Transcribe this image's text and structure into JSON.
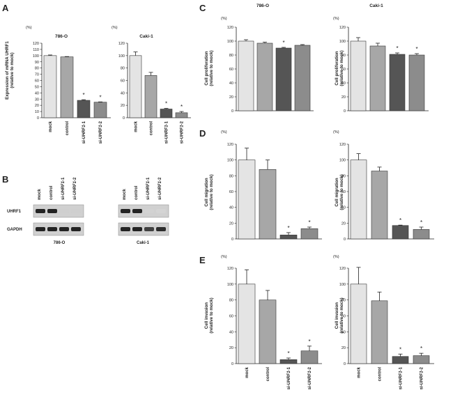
{
  "colors": {
    "mock": "#e4e4e4",
    "control": "#a7a7a7",
    "si1": "#555555",
    "si2": "#8c8c8c",
    "axis": "#222222"
  },
  "panel_letters": {
    "A": "A",
    "B": "B",
    "C": "C",
    "D": "D",
    "E": "E"
  },
  "units": "(%)",
  "star": "*",
  "y_labels": {
    "mrna": [
      "Expression of mRNA UHRF1",
      "(relative to mock)"
    ],
    "proliferation": [
      "Cell proliferation",
      "(relative to mock)"
    ],
    "migration": [
      "Cell migration",
      "(relative to mock)"
    ],
    "invasion": [
      "Cell invasion",
      "(relative to mock)"
    ]
  },
  "x_labels": {
    "mock": "mock",
    "control": "control",
    "si1_prefix": "si-",
    "si1_gene": "UHRF1",
    "si1_suffix": "-1",
    "si2_prefix": "si-",
    "si2_gene": "UHRF1",
    "si2_suffix": "-2"
  },
  "blot": {
    "rows": [
      "UHRF1",
      "GAPDH"
    ],
    "lanes": [
      "mock",
      "control",
      "si-UHRF1-1",
      "si-UHRF1-2"
    ],
    "cell_lines": [
      "786-O",
      "Caki-1"
    ]
  },
  "chart_data": [
    {
      "id": "A-786",
      "panel": "A",
      "type": "bar",
      "title": "786-O",
      "ylabel": "Expression of mRNA UHRF1 (relative to mock)",
      "categories": [
        "mock",
        "control",
        "si-UHRF1-1",
        "si-UHRF1-2"
      ],
      "values": [
        100,
        98,
        28,
        25
      ],
      "errors": [
        1,
        0.5,
        1,
        0.5
      ],
      "significant": [
        false,
        false,
        true,
        true
      ],
      "ylim": [
        0,
        120
      ],
      "yticks": [
        0,
        10,
        20,
        30,
        40,
        50,
        60,
        70,
        80,
        90,
        100,
        110,
        120
      ]
    },
    {
      "id": "A-caki",
      "panel": "A",
      "type": "bar",
      "title": "Caki-1",
      "ylabel": "",
      "categories": [
        "mock",
        "control",
        "si-UHRF1-1",
        "si-UHRF1-2"
      ],
      "values": [
        100,
        68,
        14,
        8
      ],
      "errors": [
        6,
        5,
        1,
        2
      ],
      "significant": [
        false,
        false,
        true,
        true
      ],
      "ylim": [
        0,
        120
      ],
      "yticks": [
        0,
        20,
        40,
        60,
        80,
        100,
        120
      ]
    },
    {
      "id": "C-786",
      "panel": "C",
      "type": "bar",
      "title": "786-O",
      "ylabel": "Cell proliferation (relative to mock)",
      "categories": [
        "mock",
        "control",
        "si-UHRF1-1",
        "si-UHRF1-2"
      ],
      "values": [
        100,
        97,
        90,
        94
      ],
      "errors": [
        2,
        1.5,
        1,
        1
      ],
      "significant": [
        false,
        false,
        true,
        false
      ],
      "ylim": [
        0,
        120
      ],
      "yticks": [
        0,
        20,
        40,
        60,
        80,
        100,
        120
      ]
    },
    {
      "id": "C-caki",
      "panel": "C",
      "type": "bar",
      "title": "Caki-1",
      "ylabel": "Cell proliferation (relative to mock)",
      "categories": [
        "mock",
        "control",
        "si-UHRF1-1",
        "si-UHRF1-2"
      ],
      "values": [
        100,
        93,
        81,
        80
      ],
      "errors": [
        5,
        4,
        2,
        2
      ],
      "significant": [
        false,
        false,
        true,
        true
      ],
      "ylim": [
        0,
        120
      ],
      "yticks": [
        0,
        20,
        40,
        60,
        80,
        100,
        120
      ]
    },
    {
      "id": "D-786",
      "panel": "D",
      "type": "bar",
      "title": "",
      "ylabel": "Cell migration (relative to mock)",
      "categories": [
        "mock",
        "control",
        "si-UHRF1-1",
        "si-UHRF1-2"
      ],
      "values": [
        100,
        88,
        5,
        13
      ],
      "errors": [
        15,
        12,
        3,
        2
      ],
      "significant": [
        false,
        false,
        true,
        true
      ],
      "ylim": [
        0,
        120
      ],
      "yticks": [
        0,
        20,
        40,
        60,
        80,
        100,
        120
      ]
    },
    {
      "id": "D-caki",
      "panel": "D",
      "type": "bar",
      "title": "",
      "ylabel": "Cell migration (relative to mock)",
      "categories": [
        "mock",
        "control",
        "si-UHRF1-1",
        "si-UHRF1-2"
      ],
      "values": [
        100,
        86,
        17,
        12
      ],
      "errors": [
        8,
        5,
        0.5,
        3
      ],
      "significant": [
        false,
        false,
        true,
        true
      ],
      "ylim": [
        0,
        120
      ],
      "yticks": [
        0,
        20,
        40,
        60,
        80,
        100,
        120
      ]
    },
    {
      "id": "E-786",
      "panel": "E",
      "type": "bar",
      "title": "",
      "ylabel": "Cell invasion (relative to mock)",
      "categories": [
        "mock",
        "control",
        "si-UHRF1-1",
        "si-UHRF1-2"
      ],
      "values": [
        100,
        80,
        5,
        16
      ],
      "errors": [
        18,
        12,
        2,
        6
      ],
      "significant": [
        false,
        false,
        true,
        true
      ],
      "ylim": [
        0,
        120
      ],
      "yticks": [
        0,
        20,
        40,
        60,
        80,
        100,
        120
      ]
    },
    {
      "id": "E-caki",
      "panel": "E",
      "type": "bar",
      "title": "",
      "ylabel": "Cell invasion (relative to mock)",
      "categories": [
        "mock",
        "control",
        "si-UHRF1-1",
        "si-UHRF1-2"
      ],
      "values": [
        100,
        79,
        9,
        10
      ],
      "errors": [
        21,
        11,
        3,
        3
      ],
      "significant": [
        false,
        false,
        true,
        true
      ],
      "ylim": [
        0,
        120
      ],
      "yticks": [
        0,
        20,
        40,
        60,
        80,
        100,
        120
      ]
    }
  ]
}
